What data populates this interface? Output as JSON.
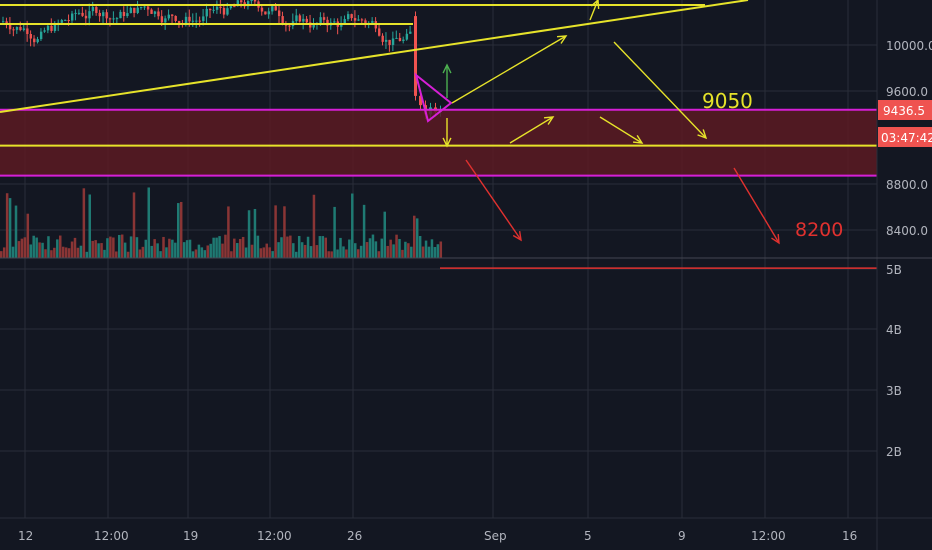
{
  "colors": {
    "background": "#131722",
    "grid": "#2a2e39",
    "text": "#b2b5be",
    "candle_up": "#26a69a",
    "candle_down": "#ef5350",
    "volume_up": "#1f7a73",
    "volume_down": "#8a3535",
    "zone_fill": "#5c1a22",
    "magenta": "#d61fd6",
    "yellow": "#e6e32a",
    "red": "#e0312f",
    "price_badge": "#ef5350",
    "countdown_badge": "#ef5350"
  },
  "chart_data": {
    "type": "candlestick",
    "price_axis": {
      "ticks": [
        "10000.0",
        "9600.0",
        "8800.0",
        "8400.0"
      ],
      "tick_values": [
        10000,
        9600,
        8800,
        8400
      ],
      "ylim": [
        8100,
        10400
      ]
    },
    "current_price": "9436.5",
    "countdown": "03:47:42",
    "volume_axis": {
      "ticks": [
        "5B",
        "4B",
        "3B",
        "2B"
      ],
      "tick_values": [
        5,
        4,
        3,
        2
      ],
      "unit": "B"
    },
    "time_axis": {
      "labels": [
        "12",
        "12:00",
        "19",
        "12:00",
        "26",
        "Sep",
        "5",
        "9",
        "12:00",
        "16"
      ]
    },
    "levels": [
      {
        "label": "9050",
        "value": 9050,
        "color": "yellow"
      },
      {
        "label": "8200",
        "value": 8200,
        "color": "red"
      }
    ],
    "zone": {
      "top": 9440,
      "bottom": 8870
    },
    "yellow_level_line": 9130
  }
}
